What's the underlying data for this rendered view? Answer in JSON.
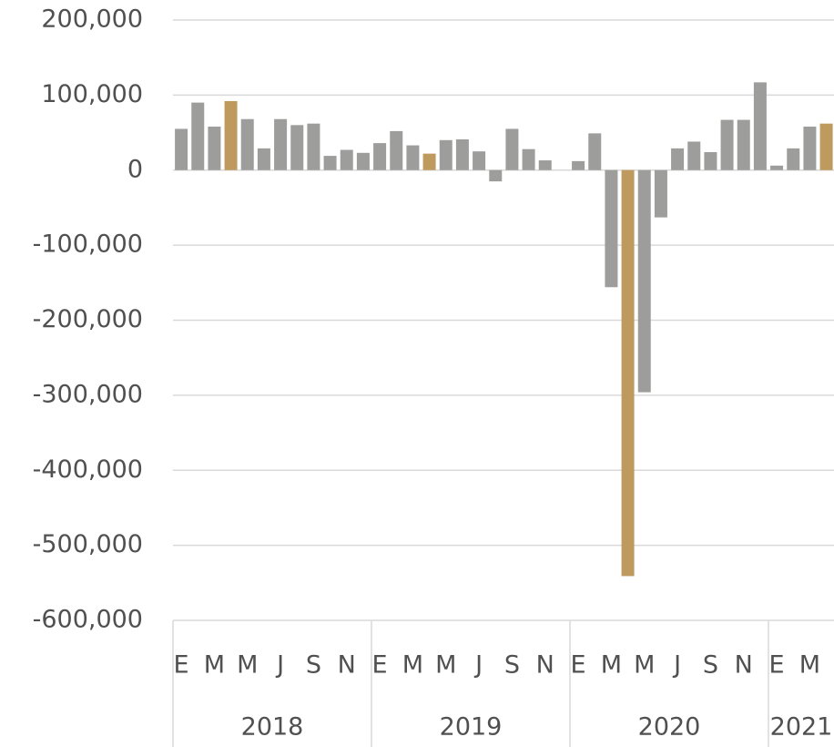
{
  "chart_data": {
    "type": "bar",
    "ylim": [
      -600000,
      200000
    ],
    "yticks": [
      {
        "value": 200000,
        "label": "200,000"
      },
      {
        "value": 100000,
        "label": "100,000"
      },
      0,
      {
        "value": -100000,
        "label": "-100,000"
      },
      {
        "value": -200000,
        "label": "-200,000"
      },
      {
        "value": -300000,
        "label": "-300,000"
      },
      {
        "value": -400000,
        "label": "-400,000"
      },
      {
        "value": -500000,
        "label": "-500,000"
      },
      {
        "value": -600000,
        "label": "-600,000"
      }
    ],
    "grid": true,
    "groups": [
      {
        "label": "2018",
        "categories": [
          "E",
          null,
          "M",
          null,
          "M",
          null,
          "J",
          null,
          "S",
          null,
          "N",
          null
        ],
        "values": [
          55000,
          90000,
          58000,
          92000,
          68000,
          29000,
          68000,
          60000,
          62000,
          19000,
          27000,
          23000
        ],
        "colors": [
          "#9d9d9c",
          "#9d9d9c",
          "#9d9d9c",
          "#bf9a5f",
          "#9d9d9c",
          "#9d9d9c",
          "#9d9d9c",
          "#9d9d9c",
          "#9d9d9c",
          "#9d9d9c",
          "#9d9d9c",
          "#9d9d9c"
        ]
      },
      {
        "label": "2019",
        "categories": [
          "E",
          null,
          "M",
          null,
          "M",
          null,
          "J",
          null,
          "S",
          null,
          "N",
          null
        ],
        "values": [
          36000,
          52000,
          33000,
          22000,
          40000,
          41000,
          25000,
          -15000,
          55000,
          28000,
          13000,
          0
        ],
        "colors": [
          "#9d9d9c",
          "#9d9d9c",
          "#9d9d9c",
          "#bf9a5f",
          "#9d9d9c",
          "#9d9d9c",
          "#9d9d9c",
          "#9d9d9c",
          "#9d9d9c",
          "#9d9d9c",
          "#9d9d9c",
          "#9d9d9c"
        ]
      },
      {
        "label": "2020",
        "categories": [
          "E",
          null,
          "M",
          null,
          "M",
          null,
          "J",
          null,
          "S",
          null,
          "N",
          null
        ],
        "values": [
          12000,
          49000,
          -156000,
          -541000,
          -296000,
          -63000,
          29000,
          38000,
          24000,
          67000,
          67000,
          117000
        ],
        "colors": [
          "#9d9d9c",
          "#9d9d9c",
          "#9d9d9c",
          "#bf9a5f",
          "#9d9d9c",
          "#9d9d9c",
          "#9d9d9c",
          "#9d9d9c",
          "#9d9d9c",
          "#9d9d9c",
          "#9d9d9c",
          "#9d9d9c"
        ]
      },
      {
        "label": "2021",
        "categories": [
          "E",
          null,
          "M",
          null
        ],
        "values": [
          6000,
          29000,
          58000,
          62000
        ],
        "colors": [
          "#9d9d9c",
          "#9d9d9c",
          "#9d9d9c",
          "#bf9a5f"
        ]
      }
    ]
  }
}
